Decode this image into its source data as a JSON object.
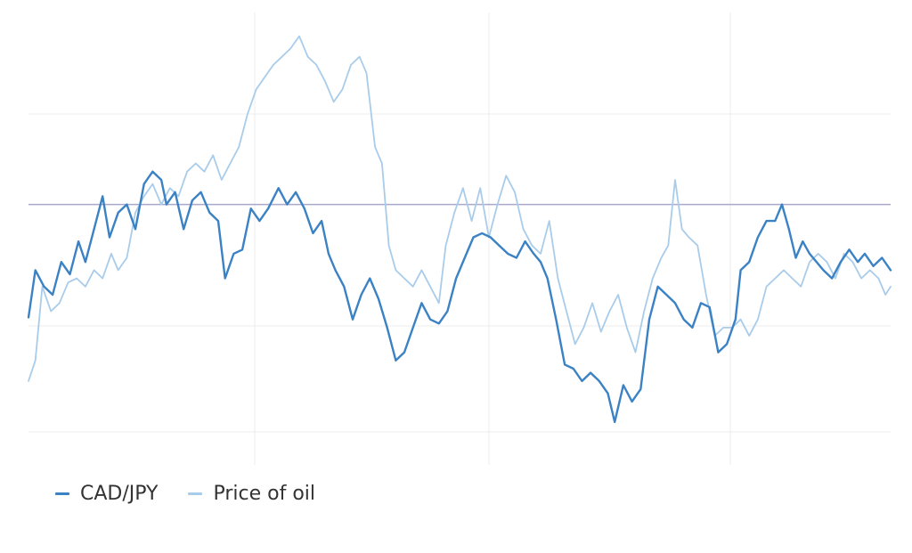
{
  "colors": {
    "background": "#ffffff",
    "grid": "#ececec",
    "reference": "#a9a9c9",
    "cad_jpy": "#3b82c4",
    "oil": "#a9ccea"
  },
  "chart_data": {
    "type": "line",
    "title": "",
    "xlabel": "",
    "ylabel": "",
    "x_ticks": [
      "",
      "",
      ""
    ],
    "y_ticks": [
      "",
      "",
      ""
    ],
    "xlim": [
      0,
      1
    ],
    "ylim": [
      0,
      100
    ],
    "reference_line": 58,
    "grid": true,
    "legend_position": "bottom-left",
    "series": [
      {
        "name": "CAD/JPY",
        "color": "#3b82c4",
        "stroke": 2.4,
        "points": [
          [
            0.0,
            30.5
          ],
          [
            0.008,
            42
          ],
          [
            0.018,
            38
          ],
          [
            0.028,
            36
          ],
          [
            0.038,
            44
          ],
          [
            0.048,
            41
          ],
          [
            0.058,
            49
          ],
          [
            0.066,
            44
          ],
          [
            0.076,
            52
          ],
          [
            0.086,
            60
          ],
          [
            0.094,
            50
          ],
          [
            0.104,
            56
          ],
          [
            0.114,
            58
          ],
          [
            0.124,
            52
          ],
          [
            0.134,
            63
          ],
          [
            0.144,
            66
          ],
          [
            0.154,
            64
          ],
          [
            0.16,
            58
          ],
          [
            0.17,
            61
          ],
          [
            0.18,
            52
          ],
          [
            0.19,
            59
          ],
          [
            0.2,
            61
          ],
          [
            0.21,
            56
          ],
          [
            0.22,
            54
          ],
          [
            0.228,
            40
          ],
          [
            0.238,
            46
          ],
          [
            0.248,
            47
          ],
          [
            0.258,
            57
          ],
          [
            0.268,
            54
          ],
          [
            0.278,
            57
          ],
          [
            0.29,
            62
          ],
          [
            0.3,
            58
          ],
          [
            0.31,
            61
          ],
          [
            0.32,
            57
          ],
          [
            0.33,
            51
          ],
          [
            0.34,
            54
          ],
          [
            0.348,
            46
          ],
          [
            0.356,
            42
          ],
          [
            0.366,
            38
          ],
          [
            0.376,
            30
          ],
          [
            0.386,
            36
          ],
          [
            0.396,
            40
          ],
          [
            0.406,
            35
          ],
          [
            0.416,
            28
          ],
          [
            0.426,
            20
          ],
          [
            0.436,
            22
          ],
          [
            0.446,
            28
          ],
          [
            0.456,
            34
          ],
          [
            0.466,
            30
          ],
          [
            0.476,
            29
          ],
          [
            0.486,
            32
          ],
          [
            0.496,
            40
          ],
          [
            0.506,
            45
          ],
          [
            0.516,
            50
          ],
          [
            0.526,
            51
          ],
          [
            0.536,
            50
          ],
          [
            0.546,
            48
          ],
          [
            0.556,
            46
          ],
          [
            0.566,
            45
          ],
          [
            0.576,
            49
          ],
          [
            0.586,
            46
          ],
          [
            0.594,
            44
          ],
          [
            0.602,
            40
          ],
          [
            0.612,
            30
          ],
          [
            0.622,
            19
          ],
          [
            0.632,
            18
          ],
          [
            0.642,
            15
          ],
          [
            0.652,
            17
          ],
          [
            0.662,
            15
          ],
          [
            0.672,
            12
          ],
          [
            0.68,
            5
          ],
          [
            0.69,
            14
          ],
          [
            0.7,
            10
          ],
          [
            0.71,
            13
          ],
          [
            0.72,
            30
          ],
          [
            0.73,
            38
          ],
          [
            0.74,
            36
          ],
          [
            0.75,
            34
          ],
          [
            0.76,
            30
          ],
          [
            0.77,
            28
          ],
          [
            0.78,
            34
          ],
          [
            0.79,
            33
          ],
          [
            0.8,
            22
          ],
          [
            0.81,
            24
          ],
          [
            0.82,
            30
          ],
          [
            0.826,
            42
          ],
          [
            0.836,
            44
          ],
          [
            0.846,
            50
          ],
          [
            0.856,
            54
          ],
          [
            0.866,
            54
          ],
          [
            0.874,
            58
          ],
          [
            0.882,
            52
          ],
          [
            0.89,
            45
          ],
          [
            0.898,
            49
          ],
          [
            0.906,
            46
          ],
          [
            0.914,
            44
          ],
          [
            0.922,
            42
          ],
          [
            0.932,
            40
          ],
          [
            0.942,
            44
          ],
          [
            0.952,
            47
          ],
          [
            0.962,
            44
          ],
          [
            0.97,
            46
          ],
          [
            0.98,
            43
          ],
          [
            0.99,
            45
          ],
          [
            1.0,
            42
          ]
        ]
      },
      {
        "name": "Price of oil",
        "color": "#a9ccea",
        "stroke": 1.8,
        "points": [
          [
            0.0,
            15
          ],
          [
            0.008,
            20
          ],
          [
            0.016,
            38
          ],
          [
            0.026,
            32
          ],
          [
            0.036,
            34
          ],
          [
            0.046,
            39
          ],
          [
            0.056,
            40
          ],
          [
            0.066,
            38
          ],
          [
            0.076,
            42
          ],
          [
            0.086,
            40
          ],
          [
            0.096,
            46
          ],
          [
            0.104,
            42
          ],
          [
            0.114,
            45
          ],
          [
            0.124,
            56
          ],
          [
            0.134,
            60
          ],
          [
            0.144,
            63
          ],
          [
            0.154,
            58
          ],
          [
            0.164,
            62
          ],
          [
            0.174,
            60
          ],
          [
            0.184,
            66
          ],
          [
            0.194,
            68
          ],
          [
            0.204,
            66
          ],
          [
            0.214,
            70
          ],
          [
            0.224,
            64
          ],
          [
            0.234,
            68
          ],
          [
            0.244,
            72
          ],
          [
            0.254,
            80
          ],
          [
            0.264,
            86
          ],
          [
            0.274,
            89
          ],
          [
            0.284,
            92
          ],
          [
            0.294,
            94
          ],
          [
            0.304,
            96
          ],
          [
            0.314,
            99
          ],
          [
            0.324,
            94
          ],
          [
            0.334,
            92
          ],
          [
            0.344,
            88
          ],
          [
            0.354,
            83
          ],
          [
            0.364,
            86
          ],
          [
            0.374,
            92
          ],
          [
            0.384,
            94
          ],
          [
            0.392,
            90
          ],
          [
            0.402,
            72
          ],
          [
            0.41,
            68
          ],
          [
            0.418,
            48
          ],
          [
            0.426,
            42
          ],
          [
            0.436,
            40
          ],
          [
            0.446,
            38
          ],
          [
            0.456,
            42
          ],
          [
            0.466,
            38
          ],
          [
            0.476,
            34
          ],
          [
            0.484,
            48
          ],
          [
            0.494,
            56
          ],
          [
            0.504,
            62
          ],
          [
            0.514,
            54
          ],
          [
            0.524,
            62
          ],
          [
            0.534,
            50
          ],
          [
            0.544,
            58
          ],
          [
            0.554,
            65
          ],
          [
            0.564,
            61
          ],
          [
            0.574,
            52
          ],
          [
            0.584,
            48
          ],
          [
            0.594,
            46
          ],
          [
            0.604,
            54
          ],
          [
            0.614,
            40
          ],
          [
            0.624,
            32
          ],
          [
            0.634,
            24
          ],
          [
            0.644,
            28
          ],
          [
            0.654,
            34
          ],
          [
            0.664,
            27
          ],
          [
            0.674,
            32
          ],
          [
            0.684,
            36
          ],
          [
            0.694,
            28
          ],
          [
            0.704,
            22
          ],
          [
            0.714,
            32
          ],
          [
            0.724,
            40
          ],
          [
            0.734,
            45
          ],
          [
            0.742,
            48
          ],
          [
            0.75,
            64
          ],
          [
            0.758,
            52
          ],
          [
            0.766,
            50
          ],
          [
            0.776,
            48
          ],
          [
            0.786,
            36
          ],
          [
            0.796,
            26
          ],
          [
            0.806,
            28
          ],
          [
            0.816,
            28
          ],
          [
            0.826,
            30
          ],
          [
            0.836,
            26
          ],
          [
            0.846,
            30
          ],
          [
            0.856,
            38
          ],
          [
            0.866,
            40
          ],
          [
            0.876,
            42
          ],
          [
            0.886,
            40
          ],
          [
            0.896,
            38
          ],
          [
            0.906,
            44
          ],
          [
            0.916,
            46
          ],
          [
            0.926,
            44
          ],
          [
            0.936,
            40
          ],
          [
            0.946,
            46
          ],
          [
            0.956,
            44
          ],
          [
            0.966,
            40
          ],
          [
            0.976,
            42
          ],
          [
            0.986,
            40
          ],
          [
            0.994,
            36
          ],
          [
            1.0,
            38
          ]
        ]
      }
    ]
  }
}
